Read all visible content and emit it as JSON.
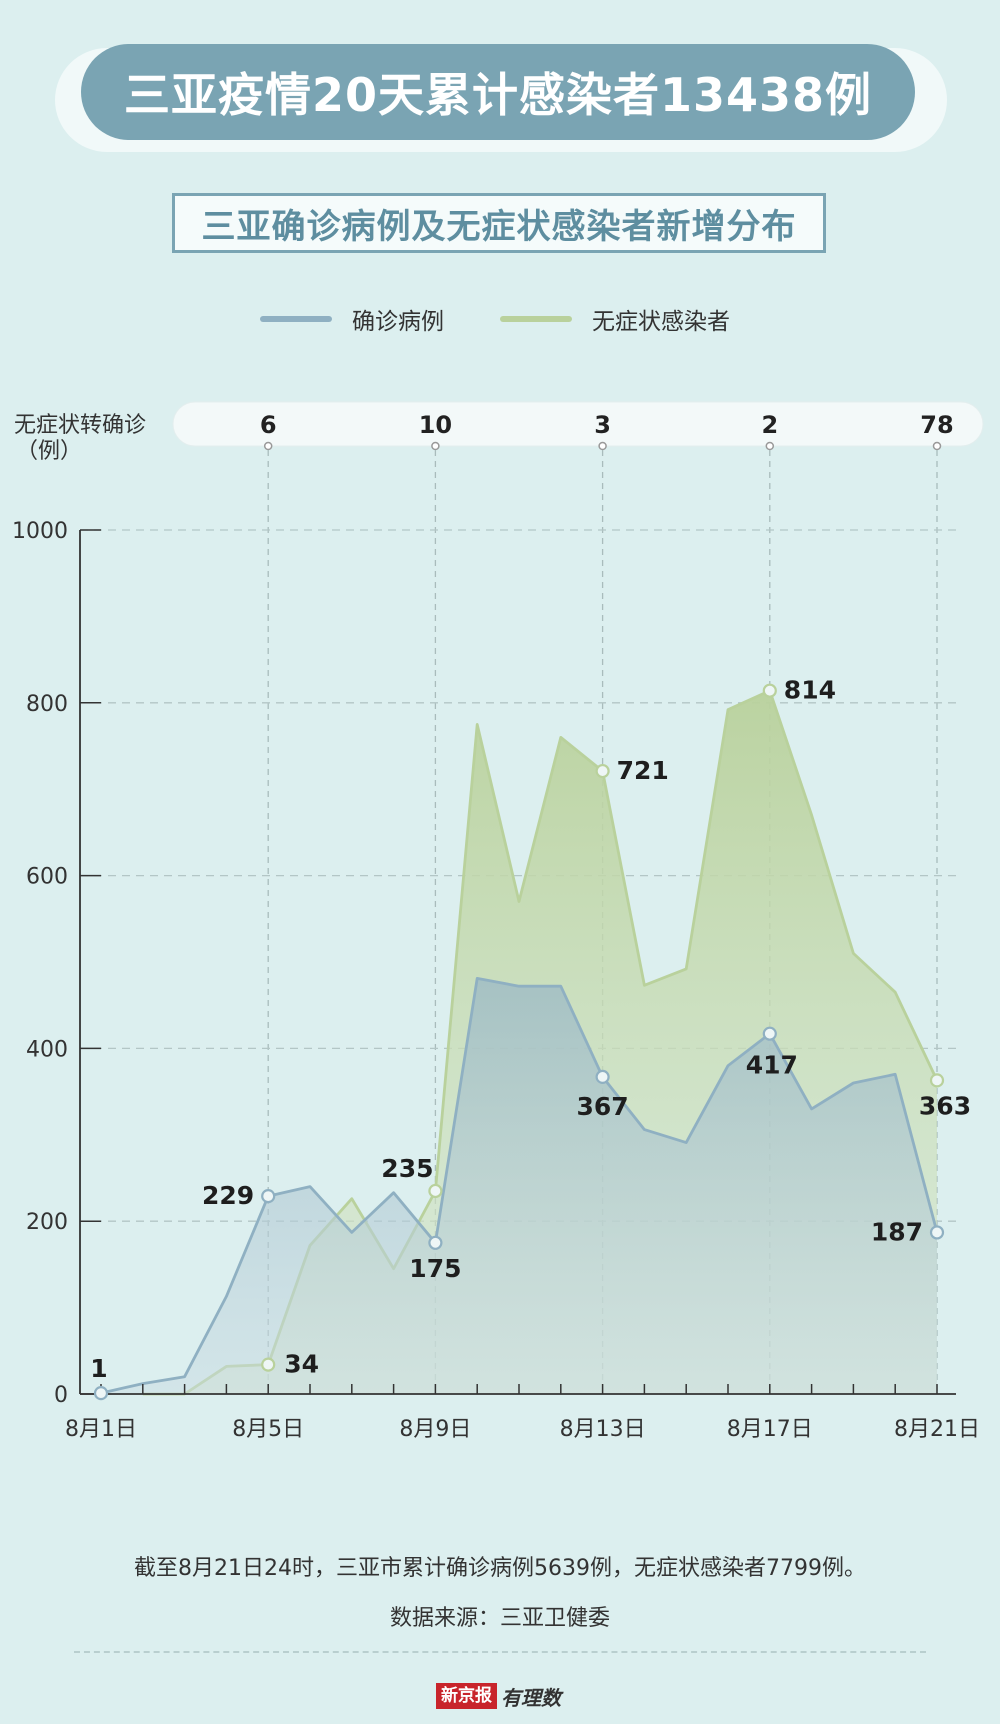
{
  "header": {
    "title": "三亚疫情20天累计感染者13438例",
    "subtitle": "三亚确诊病例及无症状感染者新增分布"
  },
  "legend": {
    "confirmed": "确诊病例",
    "asymptomatic": "无症状感染者"
  },
  "colors": {
    "confirmed": "#8fb0c2",
    "asymptomatic": "#b9d19c",
    "banner": "#7aa4b3",
    "background": "#dcefef"
  },
  "footer": {
    "note": "截至8月21日24时，三亚市累计确诊病例5639例，无症状感染者7799例。",
    "source": "数据来源：三亚卫健委",
    "brand_box": "新京报",
    "brand_text": "有理数"
  },
  "chart_data": {
    "type": "area",
    "ylabel": "（例）",
    "ylim": [
      0,
      1000
    ],
    "yticks": [
      0,
      200,
      400,
      600,
      800,
      1000
    ],
    "x": [
      "8月1日",
      "8月2日",
      "8月3日",
      "8月4日",
      "8月5日",
      "8月6日",
      "8月7日",
      "8月8日",
      "8月9日",
      "8月10日",
      "8月11日",
      "8月12日",
      "8月13日",
      "8月14日",
      "8月15日",
      "8月16日",
      "8月17日",
      "8月18日",
      "8月19日",
      "8月20日",
      "8月21日"
    ],
    "xtick_labels": [
      "8月1日",
      "8月5日",
      "8月9日",
      "8月13日",
      "8月17日",
      "8月21日"
    ],
    "xtick_indices": [
      0,
      4,
      8,
      12,
      16,
      20
    ],
    "series": [
      {
        "name": "无症状感染者",
        "values": [
          null,
          0,
          0,
          32,
          34,
          172,
          226,
          145,
          235,
          775,
          570,
          760,
          721,
          473,
          492,
          792,
          814,
          670,
          510,
          465,
          363
        ],
        "labeled": [
          {
            "index": 4,
            "text": "34"
          },
          {
            "index": 8,
            "text": "235"
          },
          {
            "index": 12,
            "text": "721"
          },
          {
            "index": 16,
            "text": "814"
          },
          {
            "index": 20,
            "text": "363"
          }
        ]
      },
      {
        "name": "确诊病例",
        "values": [
          1,
          12,
          20,
          113,
          229,
          240,
          187,
          233,
          175,
          481,
          472,
          472,
          367,
          306,
          291,
          380,
          417,
          330,
          360,
          370,
          187
        ],
        "labeled": [
          {
            "index": 0,
            "text": "1"
          },
          {
            "index": 4,
            "text": "229"
          },
          {
            "index": 8,
            "text": "175"
          },
          {
            "index": 12,
            "text": "367"
          },
          {
            "index": 16,
            "text": "417"
          },
          {
            "index": 20,
            "text": "187"
          }
        ]
      }
    ],
    "conversion_row": {
      "label": "无症状转确诊",
      "items": [
        {
          "index": 4,
          "text": "6"
        },
        {
          "index": 8,
          "text": "10"
        },
        {
          "index": 12,
          "text": "3"
        },
        {
          "index": 16,
          "text": "2"
        },
        {
          "index": 20,
          "text": "78"
        }
      ]
    },
    "grid": true
  }
}
